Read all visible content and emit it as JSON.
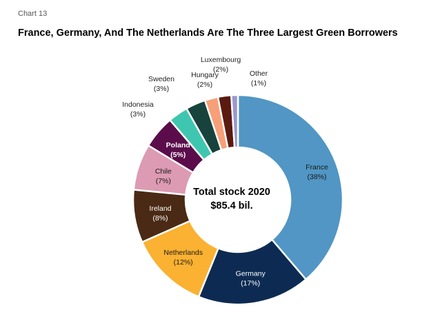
{
  "chart_label": "Chart 13",
  "title": "France, Germany, And The Netherlands Are The Three Largest Green Borrowers",
  "center": {
    "line1": "Total stock 2020",
    "line2": "$85.4 bil."
  },
  "chart_data": {
    "type": "pie",
    "title": "France, Germany, And The Netherlands Are The Three Largest Green Borrowers",
    "donut": true,
    "center_text": [
      "Total stock 2020",
      "$85.4 bil."
    ],
    "slices": [
      {
        "name": "France",
        "value": 38,
        "label": "(38%)",
        "color": "#5196c4"
      },
      {
        "name": "Germany",
        "value": 17,
        "label": "(17%)",
        "color": "#0d2b52"
      },
      {
        "name": "Netherlands",
        "value": 12,
        "label": "(12%)",
        "color": "#fbb131"
      },
      {
        "name": "Ireland",
        "value": 8,
        "label": "(8%)",
        "color": "#4a2a15"
      },
      {
        "name": "Chile",
        "value": 7,
        "label": "(7%)",
        "color": "#dd9ab3"
      },
      {
        "name": "Poland",
        "value": 5,
        "label": "(5%)",
        "color": "#5a0d4a"
      },
      {
        "name": "Indonesia",
        "value": 3,
        "label": "(3%)",
        "color": "#3fc6b0"
      },
      {
        "name": "Sweden",
        "value": 3,
        "label": "(3%)",
        "color": "#17433c"
      },
      {
        "name": "Hungary",
        "value": 2,
        "label": "(2%)",
        "color": "#f79f78"
      },
      {
        "name": "Luxembourg",
        "value": 2,
        "label": "(2%)",
        "color": "#5a1a0f"
      },
      {
        "name": "Other",
        "value": 1,
        "label": "(1%)",
        "color": "#9a98cf"
      }
    ]
  }
}
